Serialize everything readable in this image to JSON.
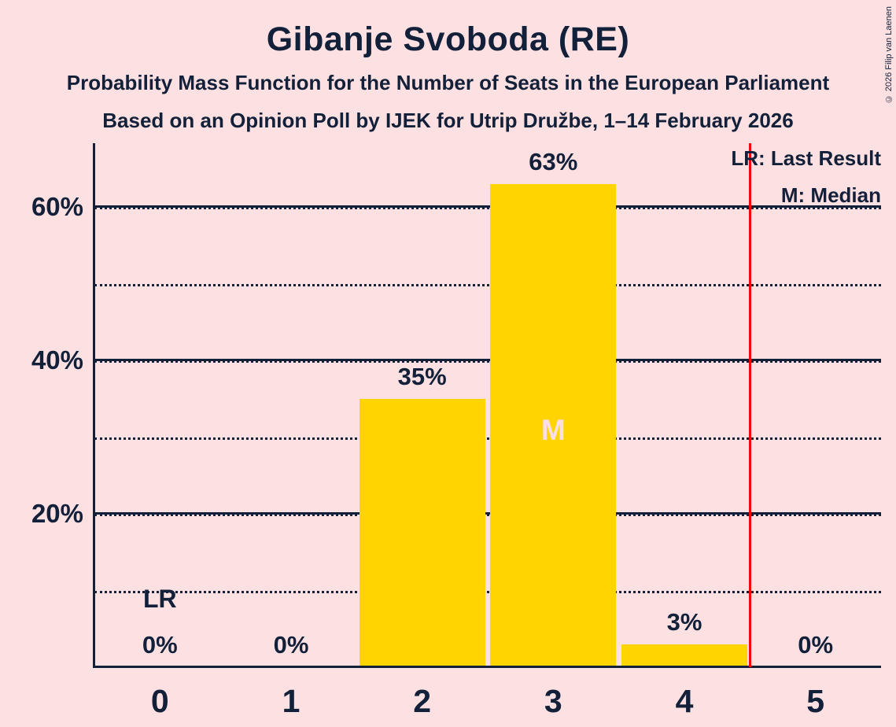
{
  "header": {
    "title": "Gibanje Svoboda (RE)",
    "subtitle1": "Probability Mass Function for the Number of Seats in the European Parliament",
    "subtitle2": "Based on an Opinion Poll by IJEK for Utrip Družbe, 1–14 February 2026"
  },
  "legend": {
    "lr_label": "LR: Last Result",
    "m_label": "M: Median"
  },
  "copyright": "© 2026 Filip van Laenen",
  "chart_data": {
    "type": "bar",
    "title": "Gibanje Svoboda (RE)",
    "categories": [
      "0",
      "1",
      "2",
      "3",
      "4",
      "5"
    ],
    "values": [
      0,
      0,
      35,
      63,
      3,
      0
    ],
    "value_labels": [
      "0%",
      "0%",
      "35%",
      "63%",
      "3%",
      "0%"
    ],
    "xlabel": "",
    "ylabel": "",
    "ylim": [
      0,
      68.3
    ],
    "y_ticks": [
      {
        "value": 20,
        "label": "20%"
      },
      {
        "value": 40,
        "label": "40%"
      },
      {
        "value": 60,
        "label": "60%"
      }
    ],
    "gridlines_dotted_percent": [
      10,
      20,
      30,
      40,
      50,
      60
    ],
    "gridlines_solid_percent": [
      20,
      40,
      60
    ],
    "grid_on": true,
    "legend_position": "top-right",
    "annotations": {
      "last_result_marker": "LR",
      "last_result_category_index": 0,
      "median_marker": "M",
      "median_category_index": 3,
      "threshold_line_x": 4.5
    },
    "colors": {
      "background": "#fde0e2",
      "bar": "#ffd400",
      "text": "#122039",
      "median_text": "#fcdfe3",
      "threshold_line": "#f70309"
    }
  }
}
